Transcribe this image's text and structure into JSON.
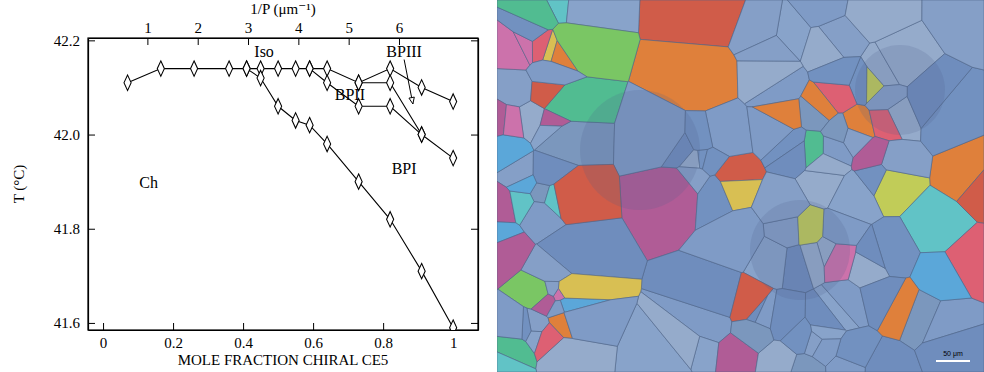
{
  "chart_data": {
    "type": "line",
    "marker": "diamond",
    "color": "#000000",
    "x_label": "MOLE FRACTION CHIRAL CE5",
    "y_label": "T (°C)",
    "x2_label": "1/P (μm⁻¹)",
    "xlim": [
      -0.043,
      1.071
    ],
    "xticks": [
      0,
      0.2,
      0.4,
      0.6,
      0.8,
      1
    ],
    "x2lim": [
      -0.18,
      7.57
    ],
    "x2ticks": [
      1,
      2,
      3,
      4,
      5,
      6
    ],
    "ylim": [
      41.585,
      42.205
    ],
    "yticks": [
      41.6,
      41.8,
      {
        "value": 42,
        "label": "42.0"
      },
      42.2
    ],
    "series": [
      {
        "x": [
          0.07,
          0.165,
          0.26,
          0.36,
          0.41,
          0.45,
          0.5,
          0.55,
          0.59,
          0.64,
          0.73,
          0.82,
          0.91,
          1.0
        ],
        "values": [
          42.11,
          42.14,
          42.14,
          42.14,
          42.14,
          42.14,
          42.14,
          42.14,
          42.14,
          42.14,
          42.11,
          42.14,
          42.1,
          42.07
        ]
      },
      {
        "x": [
          0.41,
          0.45,
          0.5,
          0.55,
          0.59,
          0.64,
          0.73,
          0.82,
          0.91,
          1.0
        ],
        "values": [
          42.14,
          42.12,
          42.06,
          42.03,
          42.02,
          41.98,
          41.9,
          41.82,
          41.71,
          41.59
        ]
      },
      {
        "x": [
          0.59,
          0.64,
          0.73,
          0.82,
          0.91,
          1.0
        ],
        "values": [
          42.14,
          42.11,
          42.06,
          42.06,
          42.0,
          41.95
        ]
      },
      {
        "x": [
          0.73,
          0.82,
          0.91
        ],
        "values": [
          42.11,
          42.11,
          42.0
        ]
      }
    ],
    "annotations": [
      {
        "text": "Iso",
        "x": 0.46,
        "y": 42.172
      },
      {
        "text": "BPIII",
        "x": 0.86,
        "y": 42.172,
        "arrow_to": [
          0.885,
          42.065
        ]
      },
      {
        "text": "BPII",
        "x": 0.705,
        "y": 42.082
      },
      {
        "text": "BPI",
        "x": 0.86,
        "y": 41.925
      },
      {
        "text": "Ch",
        "x": 0.13,
        "y": 41.895
      }
    ]
  },
  "image": {
    "type": "micrograph",
    "scale_bar_label": "50 μm"
  }
}
